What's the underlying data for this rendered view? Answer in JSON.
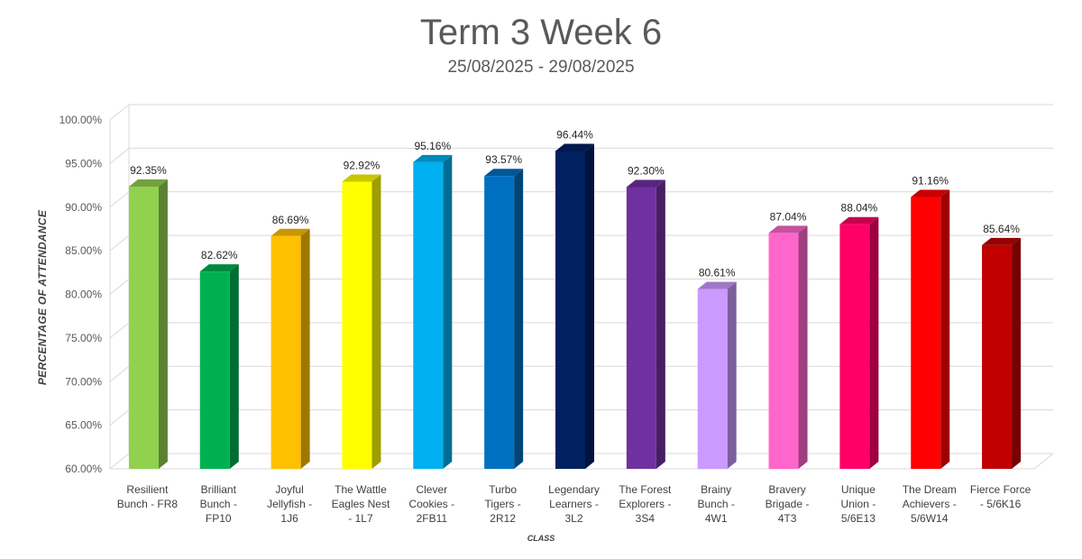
{
  "chart_data": {
    "type": "bar",
    "title": "Term 3 Week 6",
    "subtitle": "25/08/2025 - 29/08/2025",
    "xlabel": "CLASS",
    "ylabel": "PERCENTAGE OF ATTENDANCE",
    "ylim": [
      60,
      100
    ],
    "yticks": [
      "60.00%",
      "65.00%",
      "70.00%",
      "75.00%",
      "80.00%",
      "85.00%",
      "90.00%",
      "95.00%",
      "100.00%"
    ],
    "grid": true,
    "categories": [
      [
        "Resilient",
        "Bunch - FR8"
      ],
      [
        "Brilliant",
        "Bunch -",
        "FP10"
      ],
      [
        "Joyful",
        "Jellyfish -",
        "1J6"
      ],
      [
        "The Wattle",
        "Eagles Nest",
        "- 1L7"
      ],
      [
        "Clever",
        "Cookies -",
        "2FB11"
      ],
      [
        "Turbo",
        "Tigers -",
        "2R12"
      ],
      [
        "Legendary",
        "Learners -",
        "3L2"
      ],
      [
        "The Forest",
        "Explorers -",
        "3S4"
      ],
      [
        "Brainy",
        "Bunch -",
        "4W1"
      ],
      [
        "Bravery",
        "Brigade -",
        "4T3"
      ],
      [
        "Unique",
        "Union -",
        "5/6E13"
      ],
      [
        "The Dream",
        "Achievers -",
        "5/6W14"
      ],
      [
        "Fierce Force",
        "- 5/6K16"
      ]
    ],
    "values": [
      92.35,
      82.62,
      86.69,
      92.92,
      95.16,
      93.57,
      96.44,
      92.3,
      80.61,
      87.04,
      88.04,
      91.16,
      85.64
    ],
    "data_labels": [
      "92.35%",
      "82.62%",
      "86.69%",
      "92.92%",
      "95.16%",
      "93.57%",
      "96.44%",
      "92.30%",
      "80.61%",
      "87.04%",
      "88.04%",
      "91.16%",
      "85.64%"
    ],
    "colors": [
      "#92d050",
      "#00b050",
      "#ffc000",
      "#ffff00",
      "#00b0f0",
      "#0070c0",
      "#002060",
      "#7030a0",
      "#cc99ff",
      "#ff66cc",
      "#ff0066",
      "#ff0000",
      "#c00000"
    ]
  }
}
